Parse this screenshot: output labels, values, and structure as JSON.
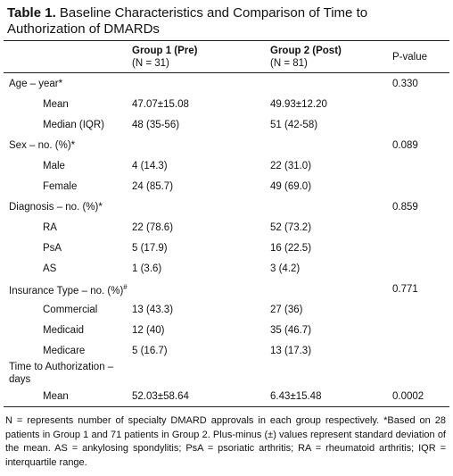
{
  "title": {
    "label": "Table 1.",
    "text": "Baseline Characteristics and Comparison of Time to Authorization of DMARDs"
  },
  "header": {
    "columns": [
      {
        "name": "Group 1 (Pre)",
        "n": "(N = 31)"
      },
      {
        "name": "Group 2 (Post)",
        "n": "(N = 81)"
      }
    ],
    "p": "P-value"
  },
  "sections": [
    {
      "label": "Age – year*",
      "p": "0.330",
      "rows": [
        {
          "label": "Mean",
          "g1": "47.07±15.08",
          "g2": "49.93±12.20"
        },
        {
          "label": "Median (IQR)",
          "g1": "48 (35-56)",
          "g2": "51 (42-58)"
        }
      ]
    },
    {
      "label": "Sex – no. (%)*",
      "p": "0.089",
      "rows": [
        {
          "label": "Male",
          "g1": "4 (14.3)",
          "g2": "22 (31.0)"
        },
        {
          "label": "Female",
          "g1": "24 (85.7)",
          "g2": "49 (69.0)"
        }
      ]
    },
    {
      "label": "Diagnosis – no. (%)*",
      "p": "0.859",
      "rows": [
        {
          "label": "RA",
          "g1": "22 (78.6)",
          "g2": "52 (73.2)"
        },
        {
          "label": "PsA",
          "g1": "5 (17.9)",
          "g2": "16 (22.5)"
        },
        {
          "label": "AS",
          "g1": "1 (3.6)",
          "g2": "3 (4.2)"
        }
      ]
    },
    {
      "label": "Insurance Type – no. (%)",
      "mark": "#",
      "p": "0.771",
      "rows": [
        {
          "label": "Commercial",
          "g1": "13 (43.3)",
          "g2": "27 (36)"
        },
        {
          "label": "Medicaid",
          "g1": "12 (40)",
          "g2": "35 (46.7)"
        },
        {
          "label": "Medicare",
          "g1": "5 (16.7)",
          "g2": "13 (17.3)"
        }
      ]
    },
    {
      "label": "Time to Authorization – days",
      "rows": [
        {
          "label": "Mean",
          "g1": "52.03±58.64",
          "g2": "6.43±15.48",
          "p": "0.0002"
        }
      ]
    }
  ],
  "footnote": "N = represents number of specialty DMARD approvals in each group respectively. *Based on 28 patients in Group 1 and 71 patients in Group 2. Plus-minus (±) values represent standard deviation of the mean. AS = ankylosing spondylitis; PsA = psoriatic arthritis; RA = rheumatoid arthritis; IQR = interquartile range."
}
